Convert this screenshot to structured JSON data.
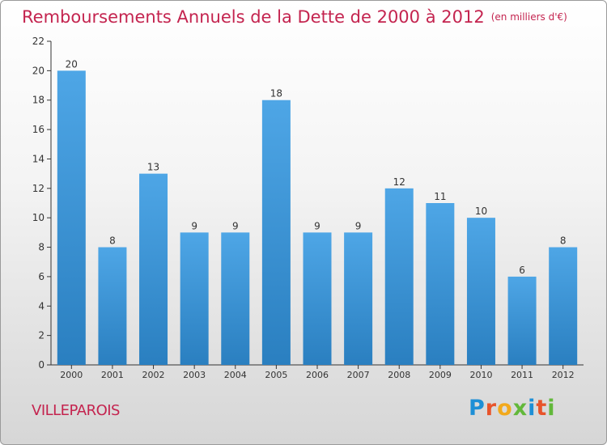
{
  "header": {
    "title": "Remboursements Annuels de la Dette de 2000 à 2012",
    "unit": "(en milliers d'€)"
  },
  "footer": {
    "city": "VILLEPAROIS",
    "brand": "Proxiti",
    "brand_colors": [
      "#1e8fd6",
      "#e8542b",
      "#f2a91c",
      "#62b83a",
      "#1e8fd6",
      "#e8542b",
      "#62b83a"
    ]
  },
  "chart_data": {
    "type": "bar",
    "title": "Remboursements Annuels de la Dette de 2000 à 2012",
    "subtitle": "(en milliers d'€)",
    "xlabel": "",
    "ylabel": "",
    "categories": [
      "2000",
      "2001",
      "2002",
      "2003",
      "2004",
      "2005",
      "2006",
      "2007",
      "2008",
      "2009",
      "2010",
      "2011",
      "2012"
    ],
    "values": [
      20,
      8,
      13,
      9,
      9,
      18,
      9,
      9,
      12,
      11,
      10,
      6,
      8
    ],
    "ylim": [
      0,
      22
    ],
    "yticks": [
      0,
      2,
      4,
      6,
      8,
      10,
      12,
      14,
      16,
      18,
      20,
      22
    ],
    "grid": false,
    "legend": "none",
    "bar_color": "#4ea6e6",
    "bar_color_dark": "#2a7fc0"
  }
}
